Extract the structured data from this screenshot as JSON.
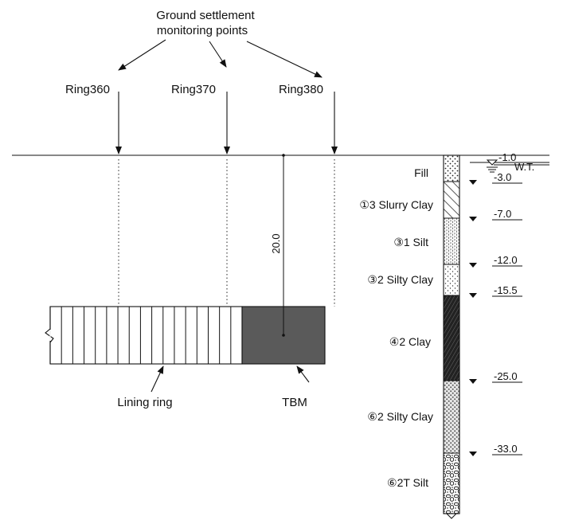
{
  "title": {
    "line1": "Ground settlement",
    "line2": "monitoring points"
  },
  "rings": [
    "Ring360",
    "Ring370",
    "Ring380"
  ],
  "depth_dimension": "20.0",
  "labels": {
    "lining": "Lining ring",
    "tbm": "TBM",
    "water_table": "W.T."
  },
  "strata": [
    {
      "name": "Fill",
      "bottom": "-3.0"
    },
    {
      "name": "①3 Slurry Clay",
      "bottom": "-7.0"
    },
    {
      "name": "③1 Silt",
      "bottom": "-12.0"
    },
    {
      "name": "③2 Silty Clay",
      "bottom": "-15.5"
    },
    {
      "name": "④2 Clay",
      "bottom": "-25.0"
    },
    {
      "name": "⑥2 Silty Clay",
      "bottom": "-33.0"
    },
    {
      "name": "⑥2T Silt",
      "bottom": ""
    }
  ],
  "top_level": "-1.0",
  "colors": {
    "tbm_fill": "#5a5a5a",
    "line": "#111111"
  }
}
